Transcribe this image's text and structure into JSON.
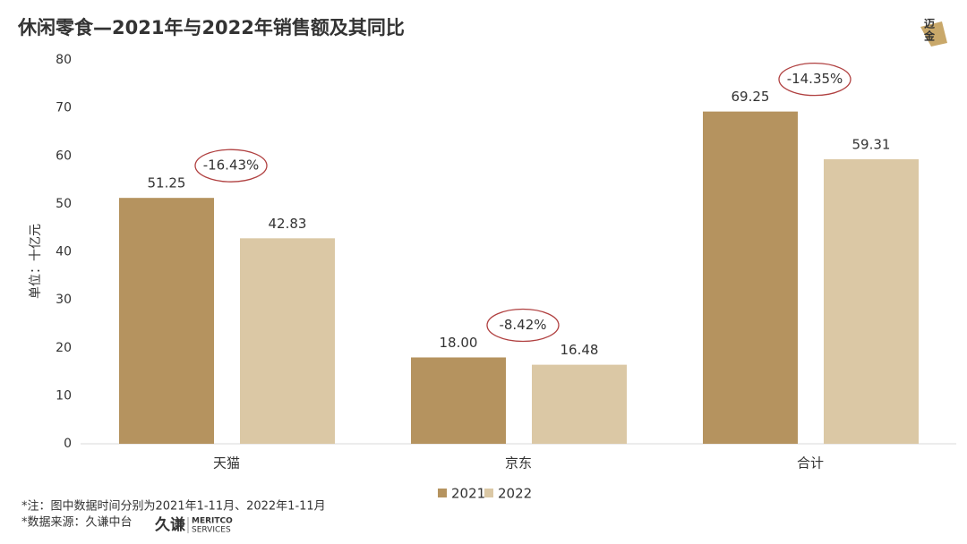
{
  "chart_data": {
    "type": "bar",
    "title": "休闲零食—2021年与2022年销售额及其同比",
    "y_label": "单位：十亿元",
    "categories": [
      "天猫",
      "京东",
      "合计"
    ],
    "series": [
      {
        "name": "2021",
        "color": "#b5935f",
        "values": [
          51.25,
          18.0,
          69.25
        ],
        "value_labels": [
          "51.25",
          "18.00",
          "69.25"
        ]
      },
      {
        "name": "2022",
        "color": "#dbc8a5",
        "values": [
          42.83,
          16.48,
          59.31
        ],
        "value_labels": [
          "42.83",
          "16.48",
          "59.31"
        ]
      }
    ],
    "annotations": [
      "-16.43%",
      "-8.42%",
      "-14.35%"
    ],
    "ylim": [
      0,
      80
    ],
    "yticks": [
      0,
      10,
      20,
      30,
      40,
      50,
      60,
      70,
      80
    ],
    "grid": false,
    "legend": "bottom"
  },
  "footer": {
    "notes": [
      "*注：图中数据时间分别为2021年1-11月、2022年1-11月",
      "*数据来源：久谦中台"
    ],
    "logo": {
      "cn": "久谦",
      "en1": "MERITCO",
      "en2": "SERVICES"
    }
  },
  "corner_logo": [
    "迈",
    "金"
  ]
}
